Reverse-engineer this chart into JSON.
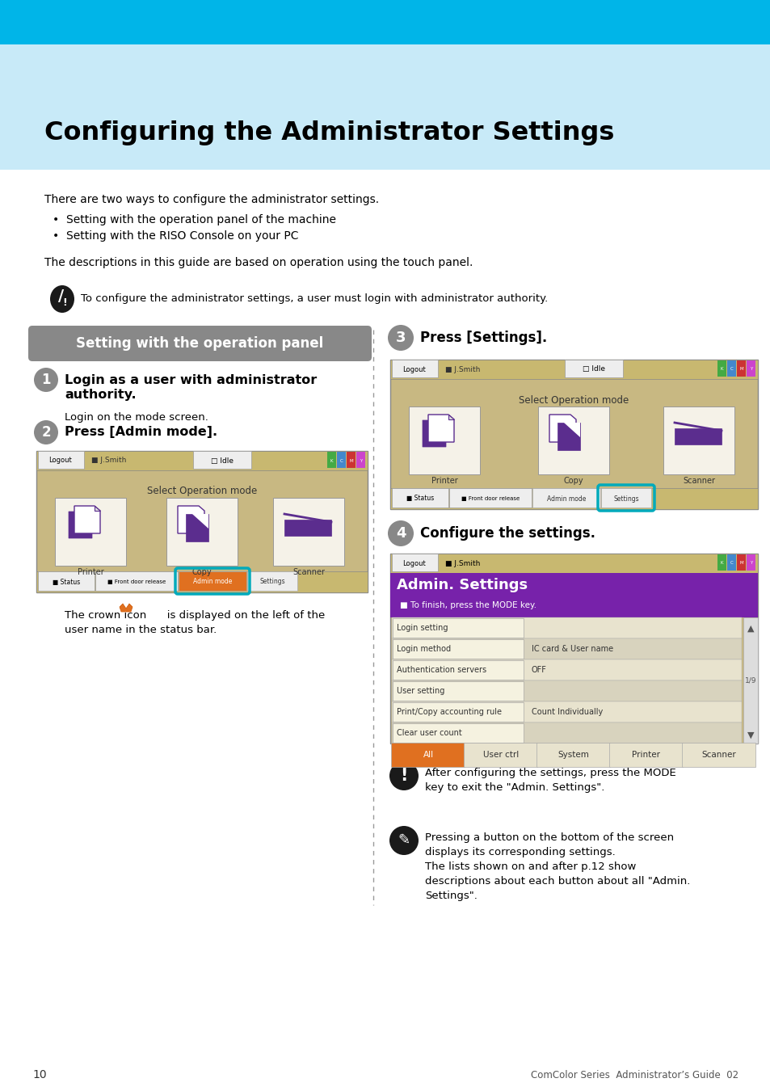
{
  "page_bg": "#ffffff",
  "header_bar_color": "#00b5e8",
  "header_light_bg": "#c8eaf8",
  "title": "Configuring the Administrator Settings",
  "body_text_1": "There are two ways to configure the administrator settings.",
  "bullet_1": "Setting with the operation panel of the machine",
  "bullet_2": "Setting with the RISO Console on your PC",
  "body_text_2": "The descriptions in this guide are based on operation using the touch panel.",
  "note_text": "To configure the administrator settings, a user must login with administrator authority.",
  "section_title": "Setting with the operation panel",
  "section_title_bg": "#888888",
  "step1_title1": "Login as a user with administrator",
  "step1_title2": "authority.",
  "step1_body": "Login on the mode screen.",
  "step2_title": "Press [Admin mode].",
  "step3_title": "Press [Settings].",
  "step4_title": "Configure the settings.",
  "crown_note_line1": "The crown icon      is displayed on the left of the",
  "crown_note_line2": "user name in the status bar.",
  "note2_line1": "After configuring the settings, press the MODE",
  "note2_line2": "key to exit the \"Admin. Settings\".",
  "note3_line1": "Pressing a button on the bottom of the screen",
  "note3_line2": "displays its corresponding settings.",
  "note3_line3": "The lists shown on and after p.12 show",
  "note3_line4": "descriptions about each button about all \"Admin.",
  "note3_line5": "Settings\".",
  "footer_text": "ComColor Series  Administrator’s Guide  02",
  "page_number": "10",
  "screen_bg": "#c8b882",
  "purple_color": "#5b2d8e",
  "orange_color": "#e07020",
  "step_circle_bg": "#888888",
  "admin_purple": "#7722aa",
  "teal_circle": "#00aabb"
}
